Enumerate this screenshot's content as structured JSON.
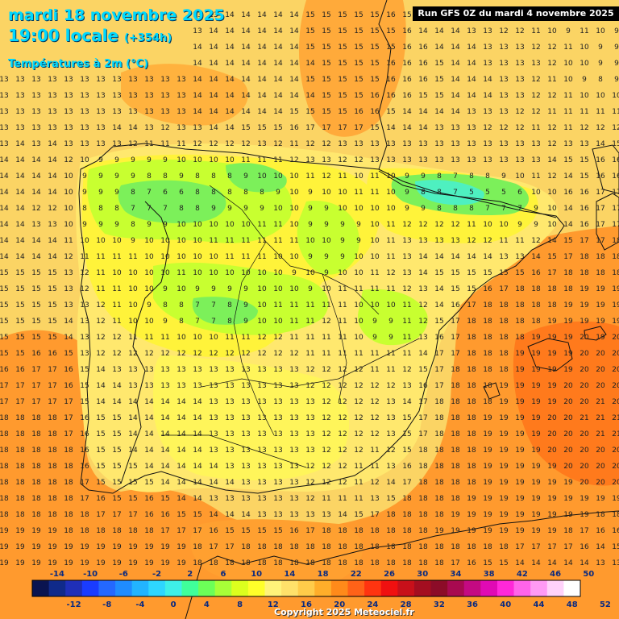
{
  "header": {
    "date_line": "mardi 18 novembre 2025",
    "time_line": "19:00 locale",
    "lead_time": "(+354h)",
    "variable": "Températures à 2m (°C)",
    "run_info": "Run GFS 0Z du mardi 4 novembre 2025",
    "copyright": "Copyright 2025 Meteociel.fr"
  },
  "legend": {
    "colors": [
      "#0a1450",
      "#102a8a",
      "#1f2fb8",
      "#1a3cff",
      "#2468ff",
      "#1f8cff",
      "#22b4ff",
      "#2ed6ff",
      "#3ef0e8",
      "#40ff9a",
      "#6cff58",
      "#a8ff38",
      "#dcff1e",
      "#ffff2a",
      "#fff37a",
      "#ffe16a",
      "#ffcc4a",
      "#ffae2a",
      "#ff8a1a",
      "#ff6218",
      "#ff3410",
      "#f01010",
      "#c8101a",
      "#a40e20",
      "#8c0c28",
      "#a80a50",
      "#c40a82",
      "#e00ab4",
      "#ff28d8",
      "#ff64ea",
      "#ff9af4",
      "#ffd2fa",
      "#ffffff"
    ],
    "top_labels": [
      "-14",
      "-10",
      "-6",
      "-2",
      "2",
      "6",
      "10",
      "14",
      "18",
      "22",
      "26",
      "30",
      "34",
      "38",
      "42",
      "46",
      "50"
    ],
    "bottom_labels": [
      "-12",
      "-8",
      "-4",
      "0",
      "4",
      "8",
      "12",
      "16",
      "20",
      "24",
      "28",
      "32",
      "36",
      "40",
      "44",
      "48",
      "52"
    ]
  },
  "map_colors": {
    "base": "#fbd464",
    "warm": "#ff9a2e",
    "hot": "#ff7a1c",
    "mild": "#ffe670",
    "cool": "#fff34a",
    "cold": "#c8ff30",
    "colder": "#7cf05a",
    "coldest": "#4ef0c0",
    "border": "#111111"
  },
  "grid_rows": [
    "13 13 13 13 13 13 13 13 13 13 12 12 13 13 14 14 14 14 14 15 15 15 15 15 16 15 14 13 13 13 13 12 12 11 10 9 10 10 10",
    "12 13 13 13 13 13 13 13 13 13 13 13 13 14 14 14 14 14 14 15 15 15 15 15 15 16 14 14 14 13 13 12 12 11 10 9 11 10 9",
    "13 13 13 13 13 13 12 12 12 13 13 13 14 14 14 14 14 14 14 15 15 15 15 15 15 16 16 14 14 14 13 13 13 12 12 11 10 9 9",
    "13 13 13 13 13 13 13 13 13 13 13 13 14 14 14 14 14 14 14 14 15 15 15 15 16 16 16 15 14 14 13 13 13 13 12 10 10 9 9",
    "13 13 13 13 13 13 13 13 13 13 13 13 14 14 14 14 14 14 14 15 15 15 15 15 16 16 16 15 14 14 14 13 13 12 11 10 9 8 9",
    "13 13 13 13 13 13 13 13 13 13 13 13 14 14 14 14 14 14 14 14 15 15 15 16 16 16 15 15 14 14 14 13 13 12 12 11 10 10 10",
    "13 13 13 13 13 13 13 13 13 13 13 13 14 14 14 14 14 14 15 15 15 15 16 16 15 14 14 14 14 13 13 13 12 12 11 11 11 11 11",
    "13 13 13 13 13 13 13 14 14 13 12 13 13 14 14 15 15 15 16 17 17 17 17 15 14 14 14 13 13 13 12 12 12 11 12 11 12 12 12",
    "13 14 13 14 13 13 13 13 12 11 11 11 12 12 12 12 13 12 11 12 12 13 13 13 13 13 13 13 13 13 13 13 13 13 12 13 13 14 15",
    "14 14 14 14 12 10 9 9 9 9 9 10 10 10 10 11 11 11 12 13 13 12 12 13 13 13 13 13 13 13 13 13 13 13 14 15 15 16 16",
    "14 14 14 14 10 9 9 9 9 8 8 9 8 8 8 9 10 10 10 11 12 11 10 11 10 9 9 8 7 8 8 9 10 11 12 14 15 16 16",
    "14 14 14 14 10 9 9 9 8 7 6 6 8 8 8 8 8 9 10 9 10 10 11 11 10 9 8 8 7 5 5 5 6 10 10 16 16 17 17",
    "14 14 12 12 10 8 8 8 7 7 7 8 8 9 9 9 9 10 10 9 9 10 10 10 10 9 9 8 8 8 7 7 7 9 10 14 16 17 17",
    "14 14 13 13 10 9 9 9 8 9 9 10 10 10 10 10 11 11 10 9 9 9 9 10 11 12 12 12 12 11 10 10 9 9 10 14 16 17 17",
    "14 14 14 14 11 10 10 10 9 10 10 10 10 11 11 11 11 11 11 10 10 9 9 10 11 13 13 13 13 12 12 11 11 12 14 15 17 17 18",
    "14 14 14 14 12 11 11 11 11 10 10 10 10 10 11 11 11 10 10 9 9 9 10 10 11 13 14 14 14 14 14 13 13 14 15 17 18 18 18",
    "15 15 15 15 13 12 11 10 10 10 10 11 10 10 10 10 10 10 9 10 9 10 10 11 12 13 14 15 15 15 15 15 15 16 17 18 18 18 18",
    "15 15 15 15 13 12 11 11 10 10 9 10 9 9 9 9 10 10 10 9 10 11 11 11 11 12 13 14 15 15 16 17 18 18 18 18 19 19 19",
    "15 15 15 15 13 13 12 11 10 9 8 8 7 7 8 9 10 11 11 11 11 11 10 10 10 11 12 14 16 17 18 18 18 18 18 19 19 19 19",
    "15 15 15 15 14 13 12 11 10 10 9 8 7 7 8 9 10 10 11 11 12 11 10 9 9 11 12 15 17 18 18 18 18 18 19 19 19 19 19",
    "15 15 15 15 14 13 12 12 11 11 11 10 10 10 11 11 12 12 11 11 11 11 10 9 9 11 13 16 17 18 18 18 18 19 19 19 20 19 20",
    "15 15 16 16 15 13 12 12 12 12 12 12 12 12 12 12 12 12 12 11 11 11 11 11 11 11 14 17 17 18 18 18 19 19 19 19 20 20 20",
    "16 16 17 17 16 15 14 13 13 13 13 13 13 13 13 13 13 13 13 12 12 12 12 11 11 12 15 17 18 18 18 18 19 19 19 19 20 20 20",
    "17 17 17 17 16 15 14 14 13 13 13 13 13 13 13 13 13 13 13 12 12 12 12 12 12 13 16 17 18 18 18 19 19 19 19 20 20 20 20",
    "17 17 17 17 17 15 14 14 14 14 14 14 14 13 13 13 13 13 13 13 12 12 12 12 13 14 17 18 18 18 18 19 19 19 19 20 20 21 20",
    "18 18 18 18 17 16 15 15 14 14 14 14 14 13 13 13 13 13 13 13 12 12 12 12 13 15 17 18 18 18 19 19 19 19 20 20 21 21 21",
    "18 18 18 18 17 16 15 15 14 14 14 14 14 13 13 13 13 13 13 13 12 12 12 12 13 15 17 18 18 18 19 19 19 19 20 20 20 21 21",
    "18 18 18 18 18 16 15 15 14 14 14 14 14 13 13 13 13 13 13 13 12 12 12 11 12 15 18 18 18 18 19 19 19 19 20 20 20 20 20",
    "18 18 18 18 18 16 15 15 15 14 14 14 14 14 13 13 13 13 13 12 12 12 11 11 13 16 18 18 18 18 19 19 19 19 19 20 20 20 20",
    "18 18 18 18 18 17 15 15 15 15 14 14 14 14 14 13 13 13 13 12 12 12 11 12 14 17 18 18 18 18 19 19 19 19 19 19 20 20 20",
    "18 18 18 18 18 17 16 15 15 16 15 14 14 13 13 13 13 13 13 12 11 11 11 13 15 18 18 18 18 19 19 19 19 19 19 19 19 19 19",
    "18 18 18 18 18 18 17 17 17 16 16 15 15 14 14 14 13 13 13 13 13 14 15 17 18 18 18 18 19 19 19 19 19 19 19 19 19 18 18",
    "19 19 19 19 18 18 18 18 18 18 17 17 17 16 15 15 15 15 16 17 18 18 18 18 18 18 18 19 19 19 19 19 19 19 19 18 17 16 16",
    "19 19 19 19 19 19 19 19 19 19 19 19 18 17 17 18 18 18 18 18 18 18 18 18 18 18 18 18 18 18 18 18 17 17 17 17 16 14 15",
    "19 19 19 19 19 19 19 19 19 19 19 19 18 18 18 18 18 18 18 18 18 18 18 18 18 18 18 18 17 16 15 15 14 14 14 14 14 13 13",
    "19 19 19 19 19 19 19 19 19 19 19 19 18 18 18 18 18 18 18 18 18 18 18 18 17 17 17 16 16 15 14 14 14 13 13 13 13 13 13",
    "19 19 19 19 19 19 19 19 19 19 19 19 19 18 18 18 18 17 17 17 17 17 17 17 16 15 15 14 14 14 14 13 13 13 13 13 13 13 13",
    "19 19 19 19 19 19 19 19 19 19 19 19 19 18 18 18 18 18 18 17 17 16 16 15 15 15 14 14 14 14 13 13 13 13 13 13 13 13 13"
  ]
}
